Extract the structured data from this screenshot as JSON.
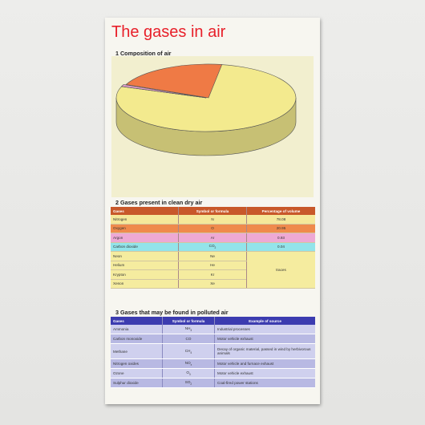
{
  "poster": {
    "title": "The gases in air",
    "section1_heading": "1 Composition of air",
    "section2_heading": "2 Gases present in clean dry air",
    "section3_heading": "3 Gases that may be found in polluted air"
  },
  "chart_data": {
    "type": "pie",
    "title": "",
    "slices": [
      {
        "label": "Nitrogen",
        "value": 78.08,
        "color": "#f3ea8e"
      },
      {
        "label": "Carbon dioxide",
        "value": 0.04,
        "color": "#8ee1e8"
      },
      {
        "label": "Argon",
        "value": 0.93,
        "color": "#e59fcf"
      },
      {
        "label": "Oxygen",
        "value": 20.95,
        "color": "#ef7a45"
      }
    ],
    "legend_position": "bottom"
  },
  "table2": {
    "headers": [
      "Gases",
      "Symbol or formula",
      "Percentage of volume"
    ],
    "rows": [
      {
        "gas": "Nitrogen",
        "formula": "N",
        "percent": "78.08",
        "color": "#f5e89b"
      },
      {
        "gas": "Oxygen",
        "formula": "O",
        "percent": "20.95",
        "color": "#ef8a4c"
      },
      {
        "gas": "Argon",
        "formula": "Ar",
        "percent": "0.93",
        "color": "#eea9d4"
      },
      {
        "gas": "Carbon dioxide",
        "formula": "CO",
        "formula_sub": "2",
        "percent": "0.04",
        "color": "#93e4ea"
      },
      {
        "gas": "Neon",
        "formula": "Ne",
        "percent": "",
        "color": "#f5ec9f"
      },
      {
        "gas": "Helium",
        "formula": "He",
        "percent": "",
        "color": "#f5ec9f"
      },
      {
        "gas": "Krypton",
        "formula": "Kr",
        "percent": "",
        "color": "#f5ec9f"
      },
      {
        "gas": "Xenon",
        "formula": "Xe",
        "percent": "",
        "color": "#f5ec9f"
      }
    ],
    "trace_label": "traces"
  },
  "table3": {
    "headers": [
      "Gases",
      "Symbol or formula",
      "Example of source"
    ],
    "rows": [
      {
        "gas": "Ammonia",
        "formula": "NH",
        "formula_sub": "3",
        "source": "Industrial processes"
      },
      {
        "gas": "Carbon monoxide",
        "formula": "CO",
        "formula_sub": "",
        "source": "Motor vehicle exhaust"
      },
      {
        "gas": "Methane",
        "formula": "CH",
        "formula_sub": "4",
        "source": "Decay of organic material, passed in wind by herbivorous animals"
      },
      {
        "gas": "Nitrogen oxides",
        "formula": "NO",
        "formula_sub": "x",
        "source": "Motor vehicle and furnace exhaust"
      },
      {
        "gas": "Ozone",
        "formula": "O",
        "formula_sub": "3",
        "source": "Motor vehicle exhaust"
      },
      {
        "gas": "Sulphur dioxide",
        "formula": "SO",
        "formula_sub": "2",
        "source": "Coal-fired power stations"
      }
    ]
  }
}
